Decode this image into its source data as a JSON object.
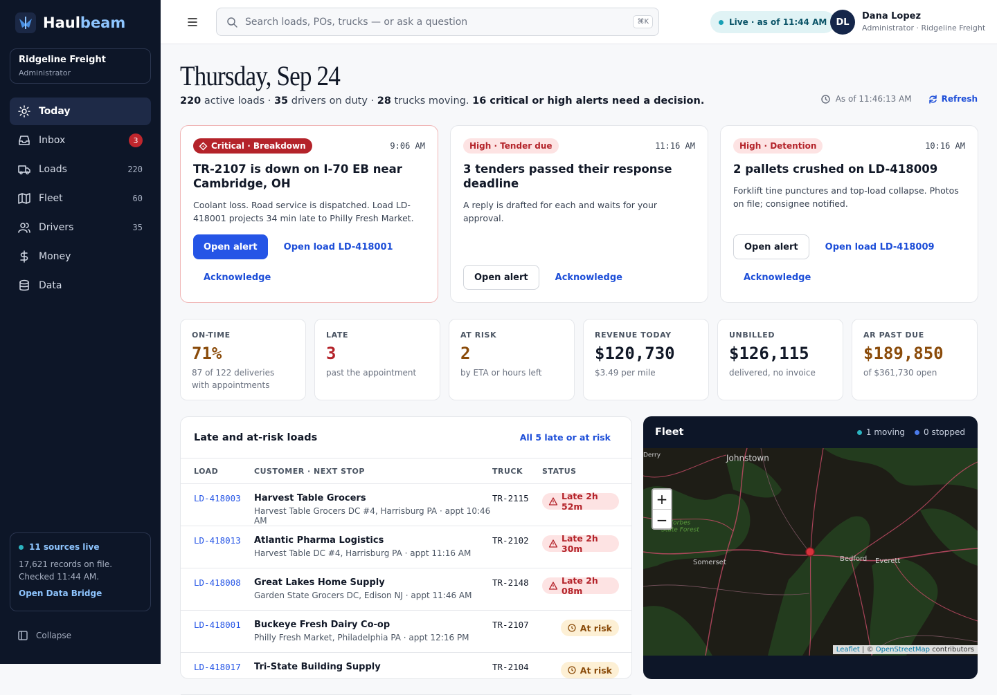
{
  "sidebar": {
    "brand": {
      "first": "Haul",
      "second": "beam"
    },
    "org": {
      "name": "Ridgeline Freight",
      "role": "Administrator"
    },
    "nav": [
      {
        "label": "Today",
        "active": true
      },
      {
        "label": "Inbox",
        "count": 3,
        "alert": true
      },
      {
        "label": "Loads",
        "count": 220
      },
      {
        "label": "Fleet",
        "count": 60
      },
      {
        "label": "Drivers",
        "count": 35
      },
      {
        "label": "Money"
      },
      {
        "label": "Data"
      }
    ],
    "sources": {
      "status": "11 sources live",
      "detail": "17,621 records on file. Checked 11:44 AM.",
      "link": "Open Data Bridge"
    },
    "collapse": "Collapse"
  },
  "topbar": {
    "search": "Search loads, POs, trucks — or ask a question",
    "shortcut": "⌘K",
    "live": "Live · as of 11:44 AM",
    "user": {
      "initials": "DL",
      "name": "Dana Lopez",
      "role": "Administrator · Ridgeline Freight"
    }
  },
  "header": {
    "title": "Thursday, Sep 24",
    "summary": [
      {
        "text": "220",
        "strong": true
      },
      {
        "text": " active loads · "
      },
      {
        "text": "35",
        "strong": true
      },
      {
        "text": " drivers on duty · "
      },
      {
        "text": "28",
        "strong": true
      },
      {
        "text": " trucks moving. "
      },
      {
        "text": "16 critical or high alerts need a decision.",
        "strong": true
      }
    ],
    "as_of": "As of 11:46:13 AM",
    "refresh": "Refresh"
  },
  "alerts": [
    {
      "severity": "critical",
      "tag": "Critical · Breakdown",
      "time": "9:06 AM",
      "title": "TR-2107 is down on I-70 EB near Cambridge, OH",
      "body": "Coolant loss. Road service is dispatched. Load LD-418001 projects 34 min late to Philly Fresh Market.",
      "actions": [
        {
          "label": "Open alert",
          "style": "primary"
        },
        {
          "label": "Open load LD-418001",
          "style": "link"
        },
        {
          "label": "Acknowledge",
          "style": "link"
        }
      ]
    },
    {
      "severity": "high",
      "tag": "High · Tender due",
      "time": "11:16 AM",
      "title": "3 tenders passed their response deadline",
      "body": "A reply is drafted for each and waits for your approval.",
      "actions": [
        {
          "label": "Open alert",
          "style": "outline"
        },
        {
          "label": "Acknowledge",
          "style": "link"
        }
      ]
    },
    {
      "severity": "high",
      "tag": "High · Detention",
      "time": "10:16 AM",
      "title": "2 pallets crushed on LD-418009",
      "body": "Forklift tine punctures and top-load collapse. Photos on file; consignee notified.",
      "actions": [
        {
          "label": "Open alert",
          "style": "outline"
        },
        {
          "label": "Open load LD-418009",
          "style": "link"
        },
        {
          "label": "Acknowledge",
          "style": "link"
        }
      ]
    }
  ],
  "kpis": [
    {
      "label": "ON-TIME",
      "value": "71%",
      "note": "87 of 122 deliveries with appointments",
      "tone": "warn"
    },
    {
      "label": "LATE",
      "value": "3",
      "note": "past the appointment",
      "tone": "bad"
    },
    {
      "label": "AT RISK",
      "value": "2",
      "note": "by ETA or hours left",
      "tone": "warn"
    },
    {
      "label": "REVENUE TODAY",
      "value": "$120,730",
      "note": "$3.49 per mile",
      "tone": "neutral"
    },
    {
      "label": "UNBILLED",
      "value": "$126,115",
      "note": "delivered, no invoice",
      "tone": "neutral"
    },
    {
      "label": "AR PAST DUE",
      "value": "$189,850",
      "note": "of $361,730 open",
      "tone": "warn"
    }
  ],
  "table": {
    "title": "Late and at-risk loads",
    "link": "All 5 late or at risk",
    "columns": [
      "LOAD",
      "CUSTOMER · NEXT STOP",
      "TRUCK",
      "STATUS"
    ],
    "rows": [
      {
        "load": "LD-418003",
        "customer": "Harvest Table Grocers",
        "stop": "Harvest Table Grocers DC #4, Harrisburg PA · appt 10:46 AM",
        "truck": "TR-2115",
        "status": "Late 2h 52m",
        "kind": "late"
      },
      {
        "load": "LD-418013",
        "customer": "Atlantic Pharma Logistics",
        "stop": "Harvest Table DC #4, Harrisburg PA · appt 11:16 AM",
        "truck": "TR-2102",
        "status": "Late 2h 30m",
        "kind": "late"
      },
      {
        "load": "LD-418008",
        "customer": "Great Lakes Home Supply",
        "stop": "Garden State Grocers DC, Edison NJ · appt 11:46 AM",
        "truck": "TR-2148",
        "status": "Late 2h 08m",
        "kind": "late"
      },
      {
        "load": "LD-418001",
        "customer": "Buckeye Fresh Dairy Co-op",
        "stop": "Philly Fresh Market, Philadelphia PA · appt 12:16 PM",
        "truck": "TR-2107",
        "status": "At risk",
        "kind": "risk"
      },
      {
        "load": "LD-418017",
        "customer": "Tri-State Building Supply",
        "truck": "TR-2104",
        "status": "At risk",
        "kind": "risk"
      }
    ]
  },
  "fleet": {
    "title": "Fleet",
    "legend": [
      "1 moving",
      "0 stopped"
    ],
    "zoom_in": "+",
    "zoom_out": "−",
    "places": [
      "Derry",
      "Johnstown",
      "Forbes",
      "State Forest",
      "Somerset",
      "Bedford",
      "Everett"
    ],
    "attribution": {
      "leaflet": "Leaflet",
      "sep": "| ©",
      "osm": "OpenStreetMap",
      "tail": "contributors"
    }
  }
}
